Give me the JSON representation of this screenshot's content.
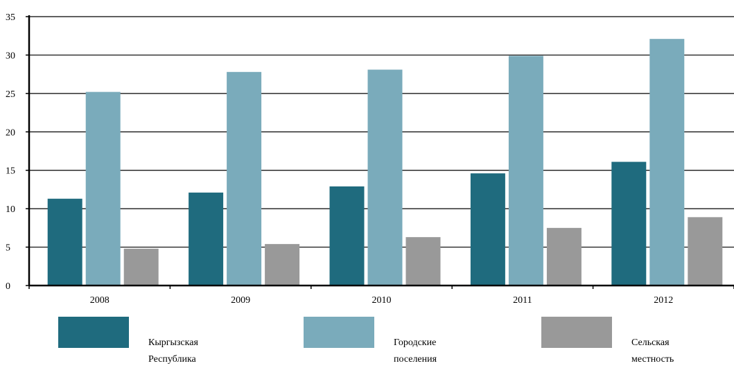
{
  "chart_data": {
    "type": "bar",
    "categories": [
      "2008",
      "2009",
      "2010",
      "2011",
      "2012"
    ],
    "series": [
      {
        "name": "Кыргызская Республика",
        "color": "#1f6b7e",
        "values": [
          11.3,
          12.1,
          12.9,
          14.6,
          16.1
        ]
      },
      {
        "name": "Городские поселения",
        "color": "#7aabbb",
        "values": [
          25.2,
          27.8,
          28.1,
          29.9,
          32.1
        ]
      },
      {
        "name": "Сельская местность",
        "color": "#999999",
        "values": [
          4.8,
          5.4,
          6.3,
          7.5,
          8.9
        ]
      }
    ],
    "yticks": [
      "0",
      "5",
      "10",
      "15",
      "20",
      "25",
      "30",
      "35"
    ],
    "ylim": [
      0,
      35
    ],
    "grid": true,
    "legend_position": "bottom"
  },
  "legend": {
    "items": [
      {
        "line1": "Кыргызская",
        "line2": "Республика",
        "color": "#1f6b7e"
      },
      {
        "line1": "Городские",
        "line2": "поселения",
        "color": "#7aabbb"
      },
      {
        "line1": "Сельская",
        "line2": "местность",
        "color": "#999999"
      }
    ]
  }
}
